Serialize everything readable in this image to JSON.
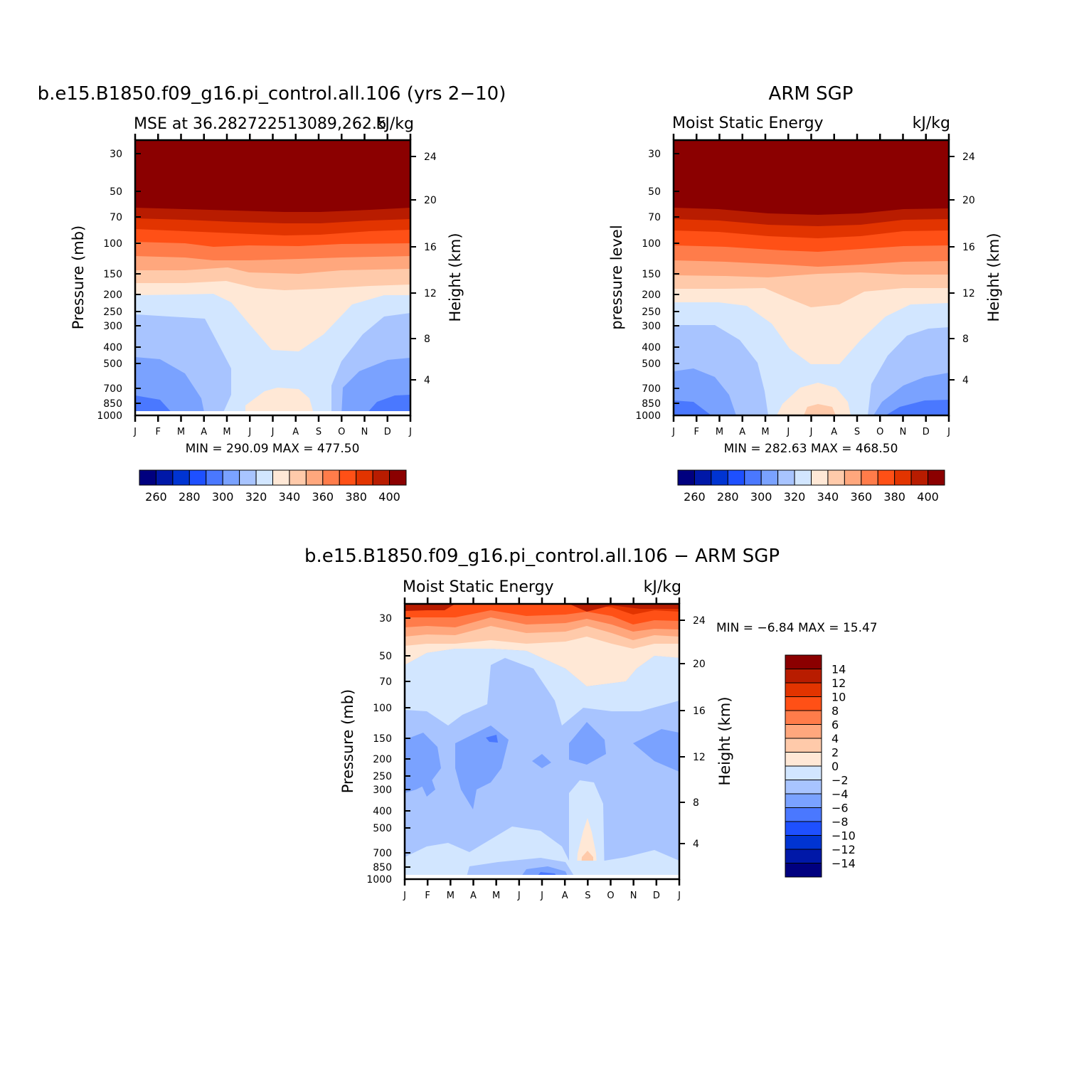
{
  "chart_data": [
    {
      "type": "heatmap",
      "title": "b.e15.B1850.f09_g16.pi_control.all.106 (yrs 2−10)",
      "subtitle_left": "MSE at 36.282722513089,262.5",
      "subtitle_right": "kJ/kg",
      "ylabel": "Pressure (mb)",
      "y2label": "Height (km)",
      "x": [
        "J",
        "F",
        "M",
        "A",
        "M",
        "J",
        "J",
        "A",
        "S",
        "O",
        "N",
        "D",
        "J"
      ],
      "y_pressure_ticks": [
        "30",
        "50",
        "70",
        "100",
        "150",
        "200",
        "250",
        "300",
        "400",
        "500",
        "700",
        "850",
        "1000"
      ],
      "y_height_ticks": [
        "24",
        "20",
        "16",
        "12",
        "8",
        "4"
      ],
      "min_max": "MIN =  290.09  MAX =  477.50",
      "colorbar_ticks": [
        "260",
        "280",
        "300",
        "320",
        "340",
        "360",
        "380",
        "400"
      ]
    },
    {
      "type": "heatmap",
      "title": "ARM SGP",
      "subtitle_left": "Moist Static Energy",
      "subtitle_right": "kJ/kg",
      "ylabel": "pressure level",
      "y2label": "Height (km)",
      "x": [
        "J",
        "F",
        "M",
        "A",
        "M",
        "J",
        "J",
        "A",
        "S",
        "O",
        "N",
        "D",
        "J"
      ],
      "y_pressure_ticks": [
        "30",
        "50",
        "70",
        "100",
        "150",
        "200",
        "250",
        "300",
        "400",
        "500",
        "700",
        "850",
        "1000"
      ],
      "y_height_ticks": [
        "24",
        "20",
        "16",
        "12",
        "8",
        "4"
      ],
      "min_max": "MIN =  282.63  MAX =  468.50",
      "colorbar_ticks": [
        "260",
        "280",
        "300",
        "320",
        "340",
        "360",
        "380",
        "400"
      ]
    },
    {
      "type": "heatmap",
      "title": "b.e15.B1850.f09_g16.pi_control.all.106 − ARM SGP",
      "subtitle_left": "Moist Static Energy",
      "subtitle_right": "kJ/kg",
      "ylabel": "Pressure (mb)",
      "y2label": "Height (km)",
      "x": [
        "J",
        "F",
        "M",
        "A",
        "M",
        "J",
        "J",
        "A",
        "S",
        "O",
        "N",
        "D",
        "J"
      ],
      "y_pressure_ticks": [
        "30",
        "50",
        "70",
        "100",
        "150",
        "200",
        "250",
        "300",
        "400",
        "500",
        "700",
        "850",
        "1000"
      ],
      "y_height_ticks": [
        "24",
        "20",
        "16",
        "12",
        "8",
        "4"
      ],
      "min_max": "MIN =   −6.84  MAX =   15.47",
      "colorbar_ticks": [
        "14",
        "12",
        "10",
        "8",
        "6",
        "4",
        "2",
        "0",
        "−2",
        "−4",
        "−6",
        "−8",
        "−10",
        "−12",
        "−14"
      ]
    }
  ],
  "colors": {
    "scale": [
      "#00007f",
      "#0018a8",
      "#0034d2",
      "#1e50ff",
      "#4a78ff",
      "#7aa2ff",
      "#a8c4ff",
      "#d2e6ff",
      "#ffe8d6",
      "#ffcaaa",
      "#ffa77d",
      "#ff7c4a",
      "#ff5016",
      "#e23400",
      "#b81c00",
      "#8b0000"
    ]
  }
}
